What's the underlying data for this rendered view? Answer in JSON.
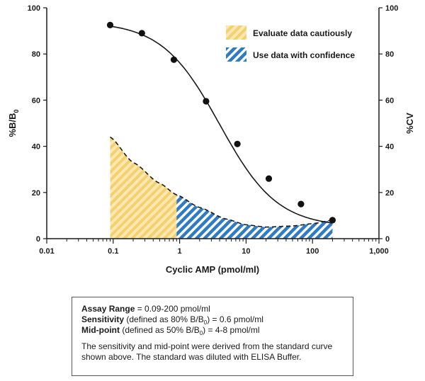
{
  "chart_data": {
    "type": "line",
    "x_scale": "log",
    "xlabel": "Cyclic AMP (pmol/ml)",
    "ylabel_left": "%B/B",
    "ylabel_left_sub": "0",
    "ylabel_right": "%CV",
    "xlim": [
      0.01,
      1000
    ],
    "ylim": [
      0,
      100
    ],
    "x_ticks": [
      "0.01",
      "0.1",
      "1",
      "10",
      "100",
      "1,000"
    ],
    "x_tick_values": [
      0.01,
      0.1,
      1,
      10,
      100,
      1000
    ],
    "y_ticks": [
      "0",
      "20",
      "40",
      "60",
      "80",
      "100"
    ],
    "y_tick_values": [
      0,
      20,
      40,
      60,
      80,
      100
    ],
    "series": [
      {
        "kind": "standard-curve-points",
        "x": [
          0.09,
          0.27,
          0.82,
          2.5,
          7.4,
          22,
          67,
          200
        ],
        "y": [
          92.5,
          89,
          77.5,
          59.5,
          41,
          26,
          15,
          8
        ]
      },
      {
        "kind": "fitted-curve",
        "top": 94,
        "bottom": 5,
        "ec50": 4,
        "slope": 1.0
      },
      {
        "kind": "cv-profile",
        "x": [
          0.09,
          0.2,
          0.5,
          0.9,
          2,
          5,
          10,
          20,
          50,
          100,
          200
        ],
        "y": [
          44,
          33,
          24,
          19,
          13.5,
          8.5,
          6,
          5,
          5.5,
          6.5,
          8
        ]
      }
    ],
    "regions": [
      {
        "label": "Evaluate data cautiously",
        "x_from": 0.09,
        "x_to": 0.9,
        "color": "#f8d47a"
      },
      {
        "label": "Use data with confidence",
        "x_from": 0.9,
        "x_to": 200,
        "color": "#2f7bc4"
      }
    ],
    "legend_position": "top-right",
    "grid": false
  },
  "info_box": {
    "range_label": "Assay Range",
    "range_text": " = 0.09-200 pmol/ml",
    "sens_label": "Sensitivity",
    "sens_text_1": " (defined as 80% B/B",
    "sens_sub": "0",
    "sens_text_2": ") = 0.6 pmol/ml",
    "mid_label": "Mid-point",
    "mid_text_1": " (defined as 50% B/B",
    "mid_sub": "0",
    "mid_text_2": ") = 4-8 pmol/ml",
    "note_line_1": "The sensitivity and mid-point were derived from the standard curve",
    "note_line_2": "shown above. The standard was diluted with ELISA Buffer."
  }
}
